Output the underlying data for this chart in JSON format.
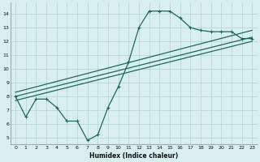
{
  "title": "",
  "xlabel": "Humidex (Indice chaleur)",
  "xlim": [
    -0.5,
    23.5
  ],
  "ylim": [
    4.5,
    14.8
  ],
  "xticks": [
    0,
    1,
    2,
    3,
    4,
    5,
    6,
    7,
    8,
    9,
    10,
    11,
    12,
    13,
    14,
    15,
    16,
    17,
    18,
    19,
    20,
    21,
    22,
    23
  ],
  "yticks": [
    5,
    6,
    7,
    8,
    9,
    10,
    11,
    12,
    13,
    14
  ],
  "bg_color": "#d9eeee",
  "grid_color": "#b8d8d8",
  "line_color": "#1a6b5a",
  "line1_x": [
    0,
    1,
    2,
    3,
    4,
    5,
    6,
    7,
    8,
    9,
    10,
    11,
    12,
    13,
    14,
    15,
    16,
    17,
    18,
    19,
    20,
    21,
    22,
    23
  ],
  "line1_y": [
    8.0,
    6.5,
    7.8,
    7.8,
    7.2,
    6.2,
    6.2,
    4.8,
    5.2,
    7.2,
    8.7,
    10.5,
    13.0,
    14.2,
    14.2,
    14.2,
    13.7,
    13.0,
    12.8,
    12.7,
    12.7,
    12.7,
    12.2,
    12.2
  ],
  "line2_x": [
    0,
    23
  ],
  "line2_y": [
    8.3,
    12.8
  ],
  "line3_x": [
    0,
    23
  ],
  "line3_y": [
    8.0,
    12.3
  ],
  "line4_x": [
    0,
    23
  ],
  "line4_y": [
    7.7,
    12.0
  ],
  "figsize": [
    3.2,
    2.0
  ],
  "dpi": 100
}
